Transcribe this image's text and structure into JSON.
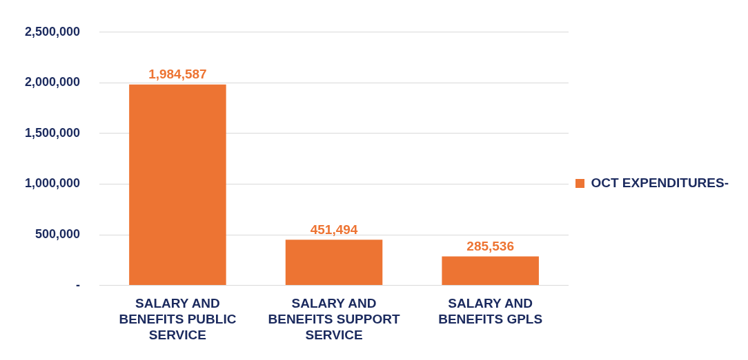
{
  "chart_data": {
    "type": "bar",
    "categories": [
      "SALARY AND BENEFITS PUBLIC SERVICE",
      "SALARY AND BENEFITS SUPPORT SERVICE",
      "SALARY AND BENEFITS GPLS"
    ],
    "series": [
      {
        "name": "OCT EXPENDITURES-",
        "color": "#ed7433",
        "values": [
          1984587,
          451494,
          285536
        ],
        "value_labels": [
          "1,984,587",
          "451,494",
          "285,536"
        ]
      }
    ],
    "ylim": [
      0,
      2500000
    ],
    "yticks": [
      {
        "value": 0,
        "label": "-"
      },
      {
        "value": 500000,
        "label": "500,000"
      },
      {
        "value": 1000000,
        "label": "1,000,000"
      },
      {
        "value": 1500000,
        "label": "1,500,000"
      },
      {
        "value": 2000000,
        "label": "2,000,000"
      },
      {
        "value": 2500000,
        "label": "2,500,000"
      }
    ],
    "grid": "y",
    "legend": "right"
  }
}
